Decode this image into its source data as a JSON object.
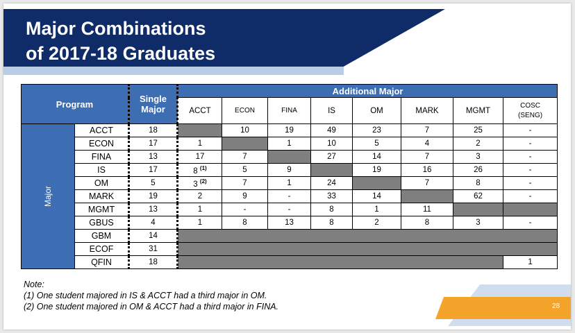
{
  "title": {
    "line1": "Major Combinations",
    "line2": "of 2017-18 Graduates"
  },
  "table": {
    "program_header": "Program",
    "single_major_header": "Single Major",
    "additional_major_header": "Additional Major",
    "side_label": "Major",
    "columns": [
      "ACCT",
      "ECON",
      "FINA",
      "IS",
      "OM",
      "MARK",
      "MGMT",
      "COSC (SENG)"
    ],
    "rows": [
      {
        "program": "ACCT",
        "single": "18",
        "cells": [
          "",
          "10",
          "19",
          "49",
          "23",
          "7",
          "25",
          "-"
        ]
      },
      {
        "program": "ECON",
        "single": "17",
        "cells": [
          "1",
          "",
          "1",
          "10",
          "5",
          "4",
          "2",
          "-"
        ]
      },
      {
        "program": "FINA",
        "single": "13",
        "cells": [
          "17",
          "7",
          "",
          "27",
          "14",
          "7",
          "3",
          "-"
        ]
      },
      {
        "program": "IS",
        "single": "17",
        "cells": [
          "8",
          "5",
          "9",
          "",
          "19",
          "16",
          "26",
          "-"
        ]
      },
      {
        "program": "OM",
        "single": "5",
        "cells": [
          "3",
          "7",
          "1",
          "24",
          "",
          "7",
          "8",
          "-"
        ]
      },
      {
        "program": "MARK",
        "single": "19",
        "cells": [
          "2",
          "9",
          "-",
          "33",
          "14",
          "",
          "62",
          "-"
        ]
      },
      {
        "program": "MGMT",
        "single": "13",
        "cells": [
          "1",
          "-",
          "-",
          "8",
          "1",
          "11",
          "",
          ""
        ]
      },
      {
        "program": "GBUS",
        "single": "4",
        "cells": [
          "1",
          "8",
          "13",
          "8",
          "2",
          "8",
          "3",
          "-"
        ]
      },
      {
        "program": "GBM",
        "single": "14",
        "cells": [
          "",
          "",
          "",
          "",
          "",
          "",
          "",
          ""
        ]
      },
      {
        "program": "ECOF",
        "single": "31",
        "cells": [
          "",
          "",
          "",
          "",
          "",
          "",
          "",
          ""
        ]
      },
      {
        "program": "QFIN",
        "single": "18",
        "cells": [
          "",
          "",
          "",
          "",
          "",
          "",
          "",
          "1"
        ]
      }
    ],
    "footnote_marks": {
      "is_acct": "(1)",
      "om_acct": "(2)"
    }
  },
  "notes": {
    "heading": "Note:",
    "note1": "(1) One student majored in IS & ACCT had a third major in OM.",
    "note2": "(2) One student majored in OM & ACCT had a third major in FINA."
  },
  "page_number": "28",
  "colors": {
    "title_bg": "#0f2c68",
    "header_blue": "#3d6db2",
    "gray_cell": "#7f7f7f",
    "accent_orange": "#f4a32b"
  }
}
